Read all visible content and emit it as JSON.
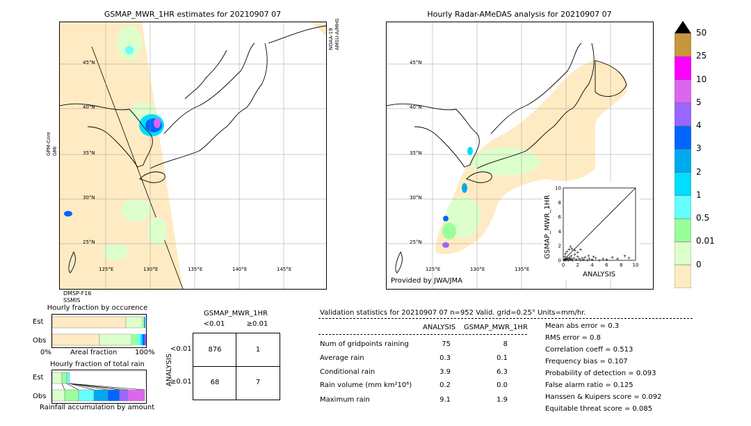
{
  "left_map": {
    "title": "GSMAP_MWR_1HR estimates for 20210907 07",
    "lat_labels": [
      "45°N",
      "40°N",
      "35°N",
      "30°N",
      "25°N"
    ],
    "lon_labels": [
      "125°E",
      "130°E",
      "135°E",
      "140°E",
      "145°E"
    ],
    "sat_right": "NOAA-19\nAMSU-A/MHS",
    "sat_left": "GPM-Core\nGMI",
    "sat_bottom": "DMSP-F16\nSSMIS"
  },
  "right_map": {
    "title": "Hourly Radar-AMeDAS analysis for 20210907 07",
    "lat_labels": [
      "45°N",
      "40°N",
      "35°N",
      "30°N",
      "25°N"
    ],
    "lon_labels": [
      "125°E",
      "130°E",
      "135°E"
    ],
    "credit": "Provided by JWA/JMA"
  },
  "colorbar": {
    "labels": [
      "50",
      "25",
      "10",
      "5",
      "4",
      "3",
      "2",
      "1",
      "0.5",
      "0.01",
      "0"
    ],
    "colors": [
      "#c8963c",
      "#ff00ff",
      "#dd66f0",
      "#9966ff",
      "#0066ff",
      "#00aaee",
      "#00ddff",
      "#66ffff",
      "#99ff99",
      "#ddffcc",
      "#ffebc3"
    ]
  },
  "scatter": {
    "ylabel": "GSMAP_MWR_1HR",
    "xlabel": "ANALYSIS",
    "ticks": [
      "0",
      "2",
      "4",
      "6",
      "8",
      "10"
    ]
  },
  "chart_data": {
    "type": "scatter",
    "xlabel": "ANALYSIS",
    "ylabel": "GSMAP_MWR_1HR",
    "xlim": [
      0,
      10
    ],
    "ylim": [
      0,
      10
    ],
    "points": [
      [
        0.1,
        0.0
      ],
      [
        0.2,
        0.1
      ],
      [
        0.3,
        0.0
      ],
      [
        0.4,
        0.2
      ],
      [
        0.5,
        0.1
      ],
      [
        0.6,
        0.3
      ],
      [
        0.7,
        0.0
      ],
      [
        0.8,
        0.2
      ],
      [
        0.9,
        0.4
      ],
      [
        1.0,
        0.1
      ],
      [
        1.1,
        0.6
      ],
      [
        1.2,
        0.2
      ],
      [
        1.3,
        0.0
      ],
      [
        1.5,
        0.3
      ],
      [
        1.6,
        0.8
      ],
      [
        1.8,
        0.1
      ],
      [
        2.0,
        0.5
      ],
      [
        2.2,
        0.2
      ],
      [
        2.4,
        0.0
      ],
      [
        2.6,
        0.3
      ],
      [
        2.8,
        0.1
      ],
      [
        3.0,
        0.4
      ],
      [
        3.3,
        0.0
      ],
      [
        3.6,
        0.2
      ],
      [
        4.0,
        0.1
      ],
      [
        4.5,
        0.3
      ],
      [
        5.0,
        0.0
      ],
      [
        5.5,
        0.2
      ],
      [
        6.0,
        0.1
      ],
      [
        6.8,
        0.4
      ],
      [
        7.5,
        0.2
      ],
      [
        8.5,
        0.6
      ],
      [
        9.1,
        0.3
      ],
      [
        0.5,
        1.2
      ],
      [
        0.8,
        1.5
      ],
      [
        1.2,
        1.6
      ],
      [
        1.6,
        1.4
      ],
      [
        2.0,
        1.1
      ],
      [
        2.4,
        1.5
      ],
      [
        1.0,
        1.9
      ],
      [
        0.3,
        0.9
      ],
      [
        0.2,
        0.5
      ],
      [
        3.5,
        0.6
      ],
      [
        4.2,
        0.5
      ]
    ]
  },
  "occurrence": {
    "title": "Hourly fraction by occurence",
    "row_est": "Est",
    "row_obs": "Obs",
    "axis_left": "0%",
    "axis_mid": "Areal fraction",
    "axis_right": "100%"
  },
  "total_rain": {
    "title": "Hourly fraction of total rain",
    "row_est": "Est",
    "row_obs": "Obs",
    "footer": "Rainfall accumulation by amount"
  },
  "contingency": {
    "title": "GSMAP_MWR_1HR",
    "col1": "<0.01",
    "col2": "≥0.01",
    "side_label": "ANALYSIS",
    "row1": "<0.01",
    "row2": "≥0.01",
    "values": [
      "876",
      "1",
      "68",
      "7"
    ]
  },
  "validation": {
    "header": "Validation statistics for 20210907 07  n=952 Valid. grid=0.25° Units=mm/hr.",
    "col_analysis": "ANALYSIS",
    "col_gsmap": "GSMAP_MWR_1HR",
    "rows": [
      {
        "label": "Num of gridpoints raining",
        "a": "75",
        "g": "8"
      },
      {
        "label": "Average rain",
        "a": "0.3",
        "g": "0.1"
      },
      {
        "label": "Conditional rain",
        "a": "3.9",
        "g": "6.3"
      },
      {
        "label": "Rain volume (mm km²10⁶)",
        "a": "0.2",
        "g": "0.0"
      },
      {
        "label": "Maximum rain",
        "a": "9.1",
        "g": "1.9"
      }
    ],
    "scores": [
      "Mean abs error =    0.3",
      "RMS error =    0.8",
      "Correlation coeff =  0.513",
      "Frequency bias =  0.107",
      "Probability of detection =  0.093",
      "False alarm ratio =  0.125",
      "Hanssen & Kuipers score =  0.092",
      "Equitable threat score =  0.085"
    ]
  }
}
